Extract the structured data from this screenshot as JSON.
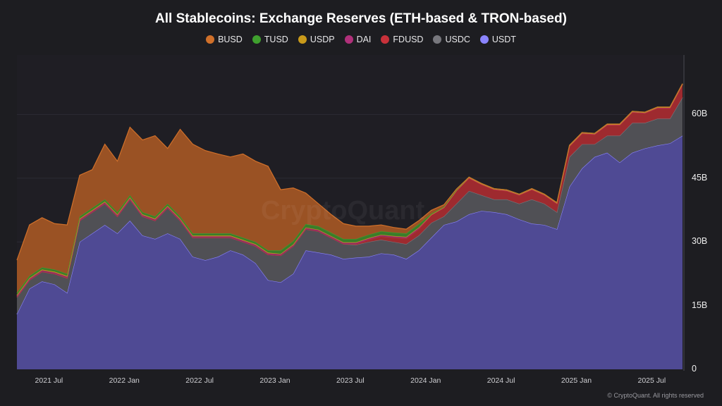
{
  "chart_data": {
    "type": "area",
    "stacked": true,
    "title": "All Stablecoins: Exchange Reserves (ETH-based & TRON-based)",
    "legend_position": "top",
    "grid": true,
    "y_axis_position": "right",
    "ylim": [
      0,
      74
    ],
    "yticks": [
      {
        "v": 0,
        "label": "0"
      },
      {
        "v": 15,
        "label": "15B"
      },
      {
        "v": 30,
        "label": "30B"
      },
      {
        "v": 45,
        "label": "45B"
      },
      {
        "v": 60,
        "label": "60B"
      }
    ],
    "xticks": [
      {
        "month": "2021-07",
        "label": "2021 Jul"
      },
      {
        "month": "2022-01",
        "label": "2022 Jan"
      },
      {
        "month": "2022-07",
        "label": "2022 Jul"
      },
      {
        "month": "2023-01",
        "label": "2023 Jan"
      },
      {
        "month": "2023-07",
        "label": "2023 Jul"
      },
      {
        "month": "2024-01",
        "label": "2024 Jan"
      },
      {
        "month": "2024-07",
        "label": "2024 Jul"
      },
      {
        "month": "2025-01",
        "label": "2025 Jan"
      },
      {
        "month": "2025-07",
        "label": "2025 Jul"
      }
    ],
    "x": [
      "2021-04",
      "2021-05",
      "2021-06",
      "2021-07",
      "2021-08",
      "2021-09",
      "2021-10",
      "2021-11",
      "2021-12",
      "2022-01",
      "2022-02",
      "2022-03",
      "2022-04",
      "2022-05",
      "2022-06",
      "2022-07",
      "2022-08",
      "2022-09",
      "2022-10",
      "2022-11",
      "2022-12",
      "2023-01",
      "2023-02",
      "2023-03",
      "2023-04",
      "2023-05",
      "2023-06",
      "2023-07",
      "2023-08",
      "2023-09",
      "2023-10",
      "2023-11",
      "2023-12",
      "2024-01",
      "2024-02",
      "2024-03",
      "2024-04",
      "2024-05",
      "2024-06",
      "2024-07",
      "2024-08",
      "2024-09",
      "2024-10",
      "2024-11",
      "2024-12",
      "2025-01",
      "2025-02",
      "2025-03",
      "2025-04",
      "2025-05",
      "2025-06",
      "2025-07",
      "2025-08",
      "2025-09"
    ],
    "unit": "B",
    "series": [
      {
        "name": "USDT",
        "color": "#8a84ff",
        "fill": "#4f4a94",
        "values": [
          13,
          19,
          20.7,
          20,
          18,
          30,
          32,
          34,
          32,
          35,
          31.5,
          30.7,
          32,
          30.7,
          26.5,
          25.7,
          26.5,
          28,
          27,
          25,
          21,
          20.5,
          22.5,
          28,
          27.5,
          27,
          26,
          26.3,
          26.5,
          27.3,
          27,
          26,
          28,
          31,
          34,
          34.8,
          36.5,
          37.3,
          37,
          36.5,
          35.3,
          34.3,
          34,
          33,
          43,
          47.3,
          50,
          51,
          48.7,
          51,
          52,
          52.7,
          53.2,
          55
        ]
      },
      {
        "name": "USDC",
        "color": "#77777d",
        "fill": "#505055",
        "values": [
          4,
          2,
          2.3,
          2.5,
          3.5,
          5,
          5,
          5,
          4,
          5,
          4.5,
          4.3,
          6,
          4.3,
          4.5,
          5.3,
          4.5,
          3,
          3,
          4,
          6,
          6.3,
          6.5,
          5,
          5,
          4,
          3.5,
          3,
          3.5,
          3.2,
          3,
          3.5,
          3.5,
          3.5,
          2,
          4.2,
          5.5,
          3.7,
          3,
          3.5,
          3.7,
          5.7,
          5,
          4,
          7,
          5.7,
          3,
          4,
          6.3,
          7,
          6,
          6.3,
          5.8,
          9
        ]
      },
      {
        "name": "FDUSD",
        "color": "#c8313a",
        "fill": "#9e2a2f",
        "values": [
          0,
          0,
          0,
          0,
          0,
          0,
          0,
          0,
          0,
          0,
          0,
          0,
          0,
          0,
          0,
          0,
          0,
          0,
          0,
          0,
          0,
          0,
          0,
          0,
          0,
          0,
          0,
          0.2,
          0.5,
          0.8,
          1,
          1.3,
          1.5,
          1.8,
          2,
          3,
          3,
          2.5,
          2.3,
          2,
          2,
          2.3,
          2,
          2,
          2.5,
          2.5,
          2.3,
          2.5,
          2.5,
          2.5,
          2.3,
          2.5,
          2.5,
          3
        ]
      },
      {
        "name": "DAI",
        "color": "#b0307a",
        "fill": "#8a2a62",
        "values": [
          0.3,
          0.3,
          0.3,
          0.3,
          0.3,
          0.3,
          0.3,
          0.3,
          0.3,
          0.3,
          0.3,
          0.3,
          0.3,
          0.3,
          0.3,
          0.3,
          0.3,
          0.3,
          0.3,
          0.3,
          0.3,
          0.3,
          0.3,
          0.3,
          0.3,
          0.3,
          0.3,
          0.3,
          0.3,
          0.3,
          0.3,
          0.3,
          0.3,
          0.1,
          0.1,
          0.1,
          0.1,
          0.1,
          0.1,
          0.1,
          0.1,
          0.1,
          0.1,
          0.1,
          0.1,
          0.1,
          0.1,
          0.1,
          0.1,
          0.1,
          0.1,
          0.1,
          0.1,
          0.1
        ]
      },
      {
        "name": "USDP",
        "color": "#c99a1a",
        "fill": "#9a7a1c",
        "values": [
          0.2,
          0.2,
          0.2,
          0.2,
          0.2,
          0.2,
          0.2,
          0.2,
          0.2,
          0.2,
          0.2,
          0.2,
          0.2,
          0.2,
          0.2,
          0.2,
          0.2,
          0.2,
          0.2,
          0.2,
          0.2,
          0.1,
          0.1,
          0.1,
          0.1,
          0.1,
          0.1,
          0.1,
          0.1,
          0.1,
          0.1,
          0.1,
          0.1,
          0.05,
          0.05,
          0.05,
          0.05,
          0.05,
          0.05,
          0.05,
          0.05,
          0.05,
          0.05,
          0.05,
          0.05,
          0.05,
          0.05,
          0.05,
          0.05,
          0.05,
          0.05,
          0.05,
          0.05,
          0.05
        ]
      },
      {
        "name": "TUSD",
        "color": "#3fa02e",
        "fill": "#3a7d2a",
        "values": [
          0.5,
          0.5,
          0.5,
          0.5,
          0.5,
          0.5,
          0.5,
          0.5,
          0.5,
          0.5,
          0.5,
          0.5,
          0.5,
          0.5,
          0.5,
          0.5,
          0.5,
          0.5,
          0.5,
          0.5,
          0.5,
          0.8,
          0.8,
          0.8,
          0.8,
          0.8,
          0.8,
          0.8,
          0.8,
          0.8,
          0.8,
          0.8,
          0.8,
          0.2,
          0.1,
          0.1,
          0.1,
          0.1,
          0.1,
          0.1,
          0.1,
          0.1,
          0.1,
          0.1,
          0.1,
          0.1,
          0.1,
          0.1,
          0.1,
          0.1,
          0.1,
          0.1,
          0.1,
          0.1
        ]
      },
      {
        "name": "BUSD",
        "color": "#d0702a",
        "fill": "#9a5224",
        "values": [
          7.7,
          12,
          11.7,
          10.8,
          11.5,
          9.7,
          9,
          13,
          12,
          16,
          17,
          19,
          13,
          20.5,
          21,
          19.5,
          18.7,
          18,
          19.7,
          19,
          19.8,
          14.3,
          12.5,
          7.3,
          5.3,
          4.3,
          3.6,
          3,
          2,
          1.5,
          1.2,
          1,
          0.8,
          0.8,
          0.5,
          0.2,
          0,
          0,
          0,
          0,
          0,
          0,
          0,
          0,
          0,
          0,
          0,
          0,
          0,
          0,
          0,
          0,
          0,
          0
        ]
      }
    ],
    "legend_order": [
      "BUSD",
      "TUSD",
      "USDP",
      "DAI",
      "FDUSD",
      "USDC",
      "USDT"
    ]
  },
  "watermark": "CryptoQuant",
  "credit": "© CryptoQuant. All rights reserved"
}
